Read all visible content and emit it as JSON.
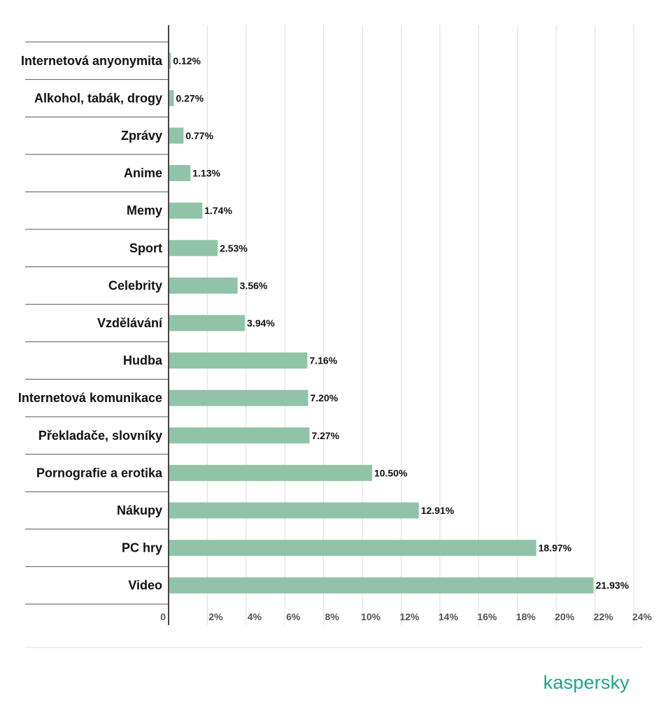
{
  "chart_data": {
    "type": "bar",
    "orientation": "horizontal",
    "categories": [
      "Internetová anyonymita",
      "Alkohol, tabák, drogy",
      "Zprávy",
      "Anime",
      "Memy",
      "Sport",
      "Celebrity",
      "Vzdělávání",
      "Hudba",
      "Internetová komunikace",
      "Překladače, slovníky",
      "Pornografie a erotika",
      "Nákupy",
      "PC hry",
      "Video"
    ],
    "values": [
      0.12,
      0.27,
      0.77,
      1.13,
      1.74,
      2.53,
      3.56,
      3.94,
      7.16,
      7.2,
      7.27,
      10.5,
      12.91,
      18.97,
      21.93
    ],
    "value_labels": [
      "0.12%",
      "0.27%",
      "0.77%",
      "1.13%",
      "1.74%",
      "2.53%",
      "3.56%",
      "3.94%",
      "7.16%",
      "7.20%",
      "7.27%",
      "10.50%",
      "12.91%",
      "18.97%",
      "21.93%"
    ],
    "xlim": [
      0,
      24
    ],
    "x_ticks": [
      0,
      2,
      4,
      6,
      8,
      10,
      12,
      14,
      16,
      18,
      20,
      22,
      24
    ],
    "x_tick_labels": [
      "0",
      "2%",
      "4%",
      "6%",
      "8%",
      "10%",
      "12%",
      "14%",
      "16%",
      "18%",
      "20%",
      "22%",
      "24%"
    ],
    "grid": true,
    "legend": "none",
    "bar_color": "#90c3a7",
    "grid_color": "#dddddd"
  },
  "brand": {
    "name": "kaspersky",
    "color": "#1ea38a"
  }
}
